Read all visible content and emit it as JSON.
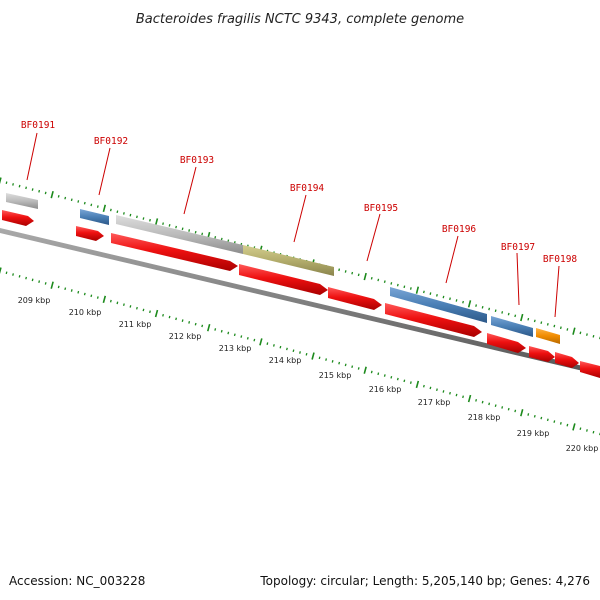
{
  "title": "Bacteroides fragilis NCTC 9343, complete genome",
  "footer": {
    "accession": "Accession: NC_003228",
    "summary": "Topology: circular; Length: 5,205,140 bp; Genes: 4,276"
  },
  "colors": {
    "cds": "#ee1111",
    "grey_feature": "#bbbbbb",
    "blue_feature": "#4a7fb5",
    "olive_feature": "#b3ad6c",
    "orange_feature": "#f08c00",
    "ticks": "#1c8a1c",
    "backbone": "#777777",
    "label": "#cc0000"
  },
  "genes": [
    "BF0191",
    "BF0192",
    "BF0193",
    "BF0194",
    "BF0195",
    "BF0196",
    "BF0197",
    "BF0198"
  ],
  "kbp_ticks": [
    "209 kbp",
    "210 kbp",
    "211 kbp",
    "212 kbp",
    "213 kbp",
    "214 kbp",
    "215 kbp",
    "216 kbp",
    "217 kbp",
    "218 kbp",
    "219 kbp",
    "220 kbp"
  ]
}
